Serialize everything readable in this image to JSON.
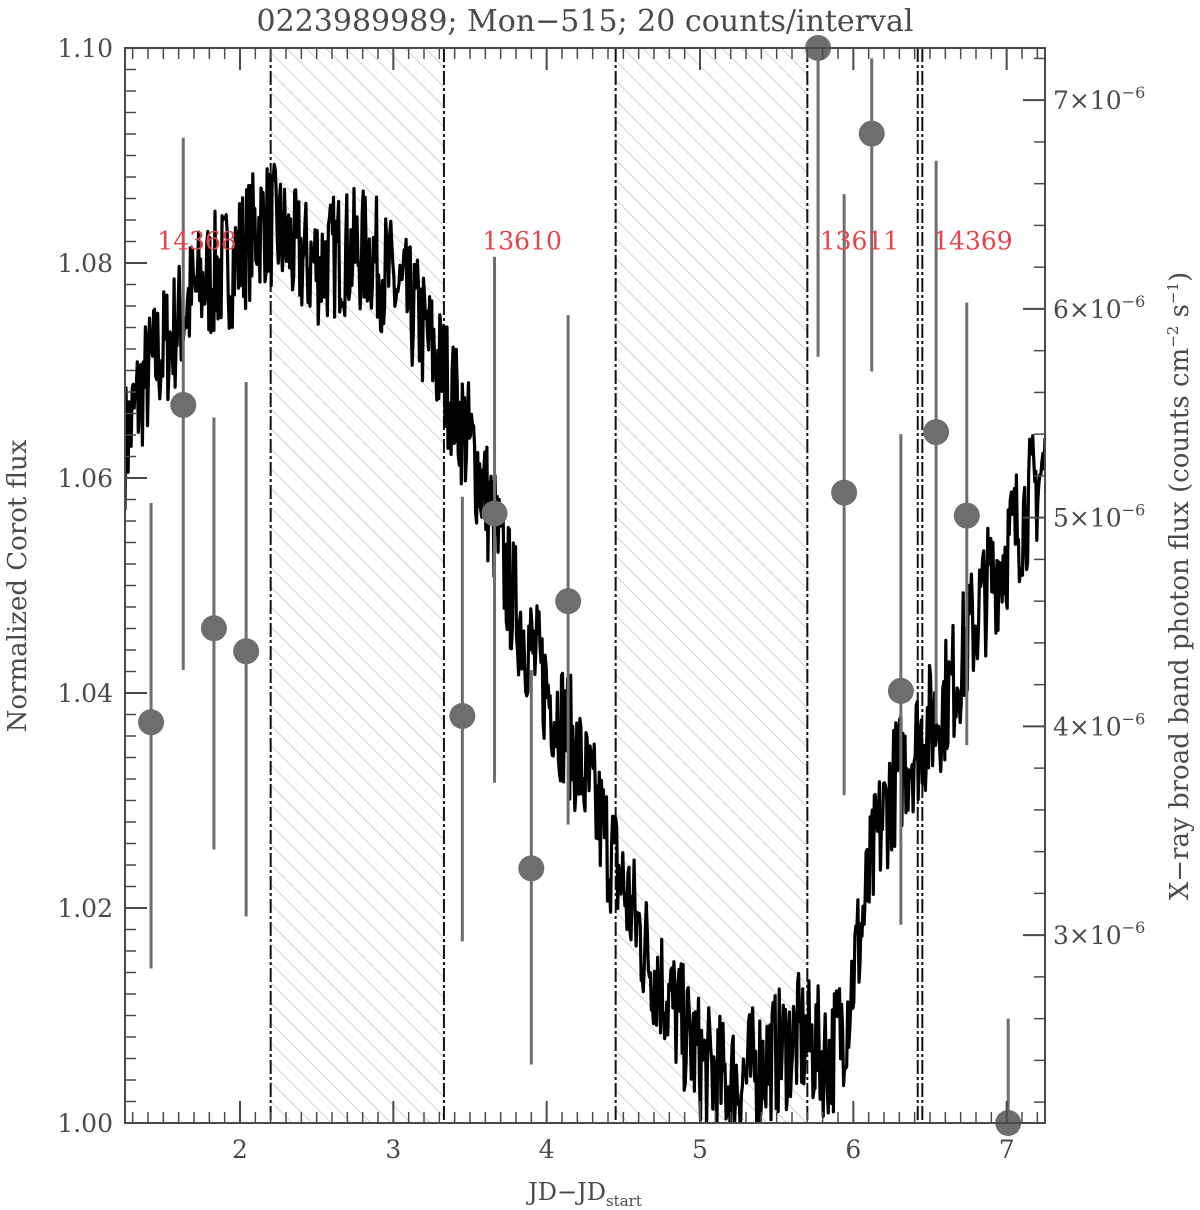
{
  "chart_data": {
    "type": "line",
    "title": "0223989989; Mon−515; 20 counts/interval",
    "xlabel": {
      "main": "JD−JD",
      "sub": "start"
    },
    "ylabel": "Normalized Corot flux",
    "y2label": {
      "pre": "X−ray broad band photon flux (counts cm",
      "sup1": "−2",
      "mid": " s",
      "sup2": "−1",
      "post": ")"
    },
    "xlim": [
      1.25,
      7.25
    ],
    "ylim": [
      1.0,
      1.1
    ],
    "y2lim": [
      2.1e-06,
      7.25e-06
    ],
    "x_ticks": [
      {
        "value": 2,
        "label": "2"
      },
      {
        "value": 3,
        "label": "3"
      },
      {
        "value": 4,
        "label": "4"
      },
      {
        "value": 5,
        "label": "5"
      },
      {
        "value": 6,
        "label": "6"
      },
      {
        "value": 7,
        "label": "7"
      }
    ],
    "y_ticks": [
      {
        "value": 1.0,
        "label": "1.00"
      },
      {
        "value": 1.02,
        "label": "1.02"
      },
      {
        "value": 1.04,
        "label": "1.04"
      },
      {
        "value": 1.06,
        "label": "1.06"
      },
      {
        "value": 1.08,
        "label": "1.08"
      },
      {
        "value": 1.1,
        "label": "1.10"
      }
    ],
    "y2_ticks": [
      {
        "value": 3e-06,
        "mant": "3×10",
        "exp": "−6"
      },
      {
        "value": 4e-06,
        "mant": "4×10",
        "exp": "−6"
      },
      {
        "value": 5e-06,
        "mant": "5×10",
        "exp": "−6"
      },
      {
        "value": 6e-06,
        "mant": "6×10",
        "exp": "−6"
      },
      {
        "value": 7e-06,
        "mant": "7×10",
        "exp": "−6"
      }
    ],
    "grid": false,
    "colors": {
      "corot": "#000000",
      "xray": "#6e6e6e",
      "label": "#e8424a",
      "hatch": "#bdbdbd",
      "axis": "#4a4a4a"
    },
    "corot_line": {
      "x": [
        1.25,
        1.35,
        1.45,
        1.55,
        1.65,
        1.75,
        1.85,
        1.95,
        2.05,
        2.15,
        2.25,
        2.35,
        2.45,
        2.55,
        2.65,
        2.75,
        2.85,
        2.95,
        3.05,
        3.15,
        3.25,
        3.35,
        3.45,
        3.55,
        3.65,
        3.75,
        3.85,
        3.95,
        4.05,
        4.15,
        4.25,
        4.35,
        4.45,
        4.55,
        4.65,
        4.75,
        4.85,
        4.95,
        5.05,
        5.15,
        5.25,
        5.35,
        5.45,
        5.55,
        5.65,
        5.75,
        5.85,
        5.95,
        6.05,
        6.15,
        6.25,
        6.35,
        6.45,
        6.55,
        6.65,
        6.75,
        6.85,
        6.95,
        7.05,
        7.15,
        7.25
      ],
      "y": [
        1.063,
        1.068,
        1.071,
        1.073,
        1.076,
        1.078,
        1.079,
        1.08,
        1.082,
        1.084,
        1.083,
        1.081,
        1.08,
        1.08,
        1.081,
        1.081,
        1.081,
        1.079,
        1.077,
        1.075,
        1.072,
        1.069,
        1.065,
        1.061,
        1.056,
        1.05,
        1.046,
        1.042,
        1.039,
        1.036,
        1.032,
        1.028,
        1.024,
        1.02,
        1.016,
        1.013,
        1.01,
        1.007,
        1.005,
        1.004,
        1.004,
        1.005,
        1.006,
        1.007,
        1.008,
        1.007,
        1.006,
        1.01,
        1.018,
        1.026,
        1.031,
        1.034,
        1.036,
        1.038,
        1.041,
        1.045,
        1.049,
        1.052,
        1.055,
        1.058,
        1.061
      ],
      "noise": 0.006
    },
    "xray_points": [
      {
        "x": 1.42,
        "y": 4.02e-06,
        "lo": 2.84e-06,
        "hi": 5.07e-06
      },
      {
        "x": 1.63,
        "y": 5.54e-06,
        "lo": 4.27e-06,
        "hi": 6.82e-06
      },
      {
        "x": 1.83,
        "y": 4.47e-06,
        "lo": 3.41e-06,
        "hi": 5.48e-06
      },
      {
        "x": 2.04,
        "y": 4.36e-06,
        "lo": 3.09e-06,
        "hi": 5.65e-06
      },
      {
        "x": 3.45,
        "y": 4.05e-06,
        "lo": 2.97e-06,
        "hi": 5.1e-06
      },
      {
        "x": 3.66,
        "y": 5.02e-06,
        "lo": 3.73e-06,
        "hi": 6.25e-06
      },
      {
        "x": 3.9,
        "y": 3.32e-06,
        "lo": 2.38e-06,
        "hi": 4.27e-06
      },
      {
        "x": 4.14,
        "y": 4.6e-06,
        "lo": 3.53e-06,
        "hi": 5.97e-06
      },
      {
        "x": 5.77,
        "y": 7.25e-06,
        "lo": 5.77e-06,
        "hi": 7.25e-06
      },
      {
        "x": 5.94,
        "y": 5.12e-06,
        "lo": 3.67e-06,
        "hi": 6.55e-06
      },
      {
        "x": 6.12,
        "y": 6.84e-06,
        "lo": 5.7e-06,
        "hi": 7.2e-06
      },
      {
        "x": 6.31,
        "y": 4.17e-06,
        "lo": 3.05e-06,
        "hi": 5.4e-06
      },
      {
        "x": 6.54,
        "y": 5.41e-06,
        "lo": 4.01e-06,
        "hi": 6.71e-06
      },
      {
        "x": 6.74,
        "y": 5.01e-06,
        "lo": 3.91e-06,
        "hi": 6.03e-06
      },
      {
        "x": 7.01,
        "y": 2.1e-06,
        "lo": 2.1e-06,
        "hi": 2.6e-06
      }
    ],
    "shaded_regions": [
      {
        "x0": 2.2,
        "x1": 3.33
      },
      {
        "x0": 4.45,
        "x1": 5.7
      }
    ],
    "vertical_lines": [
      2.2,
      3.33,
      4.45,
      5.7,
      6.42,
      6.45
    ],
    "observation_labels": [
      {
        "text": "14368",
        "x": 1.72,
        "y": 1.082
      },
      {
        "text": "13610",
        "x": 3.84,
        "y": 1.082
      },
      {
        "text": "13611",
        "x": 6.04,
        "y": 1.082
      },
      {
        "text": "14369",
        "x": 6.78,
        "y": 1.082
      }
    ]
  }
}
